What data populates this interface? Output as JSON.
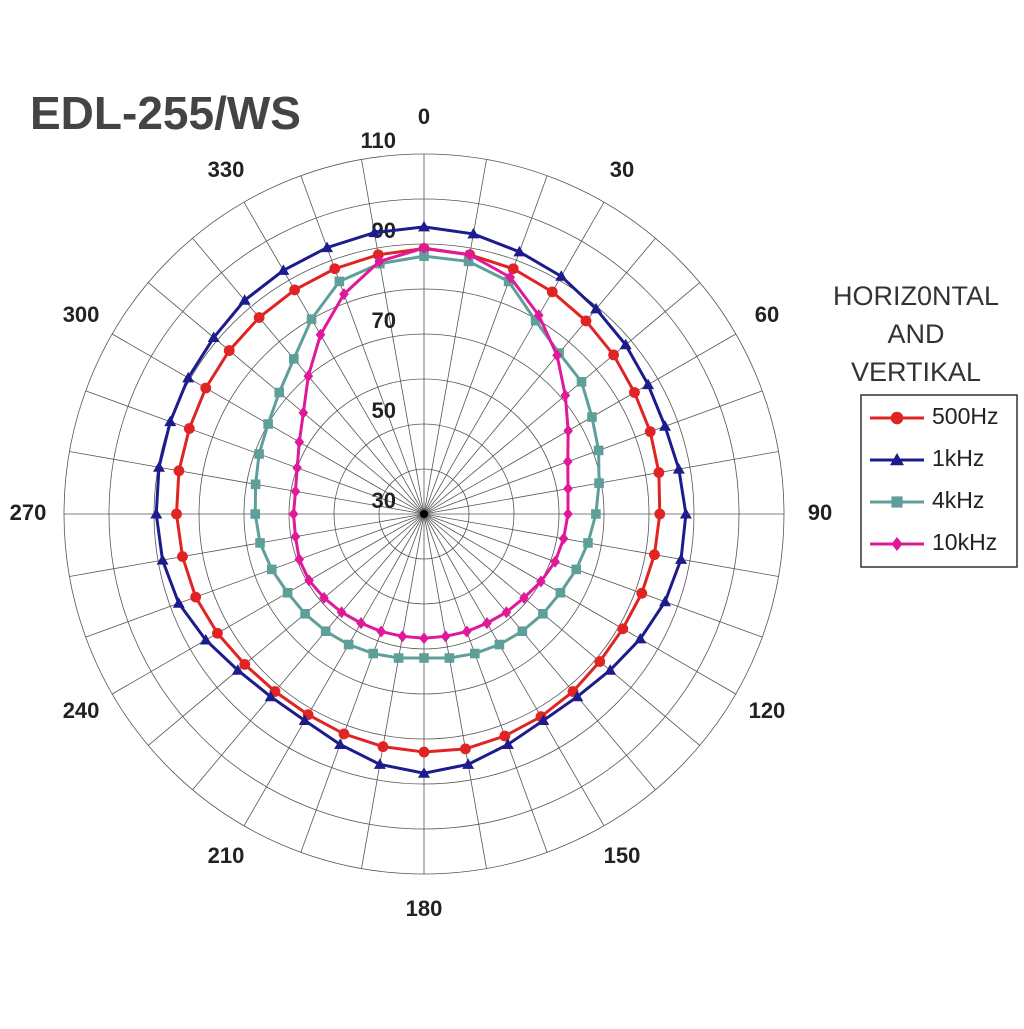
{
  "chart_data": {
    "type": "polar",
    "title": "EDL-255/WS",
    "legend_title": [
      "HORIZ0NTAL",
      "AND",
      "VERTIKAL"
    ],
    "x": [
      0,
      10,
      20,
      30,
      40,
      50,
      60,
      70,
      80,
      90,
      100,
      110,
      120,
      130,
      140,
      150,
      160,
      170,
      180,
      190,
      200,
      210,
      220,
      230,
      240,
      250,
      260,
      270,
      280,
      290,
      300,
      310,
      320,
      330,
      340,
      350
    ],
    "xticks": [
      0,
      30,
      60,
      90,
      120,
      150,
      180,
      210,
      240,
      270,
      300,
      330
    ],
    "ylim": [
      30,
      110
    ],
    "yticks": [
      30,
      50,
      70,
      90,
      110
    ],
    "grid": true,
    "series": [
      {
        "name": "500Hz",
        "color": "#e02424",
        "marker": "circle",
        "values": [
          89,
          88.5,
          88,
          87,
          86,
          85,
          84,
          83.5,
          83,
          82.4,
          82,
          81.5,
          81,
          81,
          81.5,
          82,
          82.5,
          83,
          82.9,
          82.5,
          82,
          81.5,
          81.5,
          82,
          83,
          84,
          84.5,
          85,
          85.3,
          85.5,
          86,
          86.5,
          87,
          87.5,
          88,
          88.5
        ]
      },
      {
        "name": "1kHz",
        "color": "#1c1c8c",
        "marker": "triangle",
        "values": [
          93.8,
          93.2,
          92,
          91,
          89.5,
          88.5,
          87.5,
          87,
          87.5,
          88.2,
          88,
          87,
          85.5,
          84,
          83,
          83,
          84.5,
          86.5,
          87.6,
          86.5,
          84.5,
          83,
          83,
          84,
          86,
          88,
          89,
          89.5,
          89.8,
          90,
          90.5,
          91,
          92,
          92.5,
          93,
          93.5
        ]
      },
      {
        "name": "4kHz",
        "color": "#5f9f9a",
        "marker": "square",
        "values": [
          87.3,
          87,
          85,
          79.6,
          76.7,
          75.7,
          73.1,
          71.3,
          69.5,
          68.2,
          67,
          66,
          65,
          64.5,
          64,
          63.5,
          63,
          62.5,
          62,
          62.5,
          63,
          63.5,
          64,
          64.5,
          65,
          66,
          67,
          67.5,
          68,
          69,
          70,
          72,
          75,
          80,
          85,
          86.5
        ]
      },
      {
        "name": "10kHz",
        "color": "#e0189a",
        "marker": "diamond",
        "values": [
          89.1,
          88.5,
          86,
          81,
          76,
          71,
          67,
          64,
          62.5,
          62,
          61.5,
          61,
          60,
          59,
          58.5,
          58,
          57.8,
          57.6,
          57.6,
          57.6,
          57.8,
          58,
          58.5,
          59,
          59.5,
          59.5,
          59,
          59,
          59,
          60,
          62,
          65,
          70,
          76,
          82,
          87
        ]
      }
    ]
  }
}
